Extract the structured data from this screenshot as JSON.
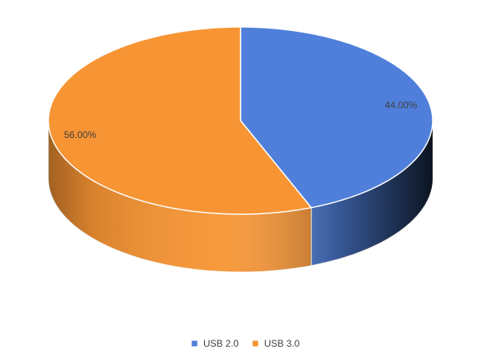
{
  "chart_data": {
    "type": "pie3d",
    "categories": [
      "USB 2.0",
      "USB 3.0"
    ],
    "values": [
      44,
      56
    ],
    "value_labels": [
      "44.00%",
      "56.00%"
    ],
    "colors": [
      "#4f7fda",
      "#f79433"
    ],
    "legend": "bottom"
  }
}
